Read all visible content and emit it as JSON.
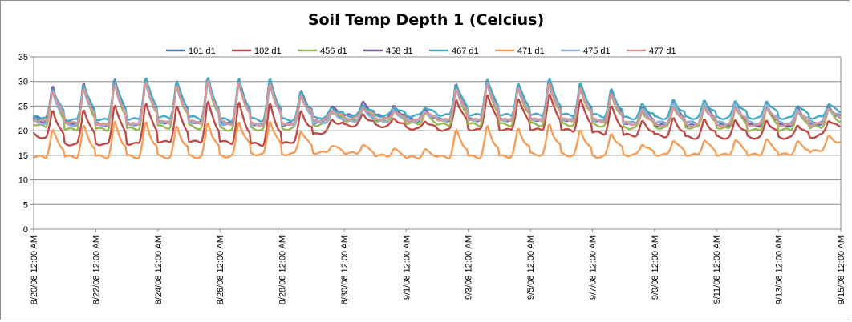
{
  "chart_data": {
    "type": "line",
    "title": "Soil Temp Depth 1 (Celcius)",
    "xlabel": "",
    "ylabel": "",
    "ylim": [
      0,
      35
    ],
    "yticks": [
      0,
      5,
      10,
      15,
      20,
      25,
      30,
      35
    ],
    "xlim": [
      0,
      26
    ],
    "xtick_labels": [
      "8/20/08 12:00 AM",
      "8/22/08 12:00 AM",
      "8/24/08 12:00 AM",
      "8/26/08 12:00 AM",
      "8/28/08 12:00 AM",
      "8/30/08 12:00 AM",
      "9/1/08 12:00 AM",
      "9/3/08 12:00 AM",
      "9/5/08 12:00 AM",
      "9/7/08 12:00 AM",
      "9/9/08 12:00 AM",
      "9/11/08 12:00 AM",
      "9/13/08 12:00 AM",
      "9/15/08 12:00 AM"
    ],
    "grid": "horizontal",
    "legend_position": "top",
    "daily_amplitude": [
      7,
      8,
      9,
      9,
      8,
      9,
      9,
      9,
      6,
      2,
      2.5,
      2,
      2,
      7,
      8,
      7,
      8,
      7,
      6,
      3,
      4,
      4,
      4,
      4,
      3,
      3,
      8
    ],
    "series": [
      {
        "name": "101 d1",
        "color": "#4a7ebb",
        "base": [
          22.5,
          21.5,
          21,
          21,
          21.5,
          21.5,
          21.5,
          21,
          21,
          21.5,
          22,
          22,
          22,
          22,
          22,
          22,
          22,
          22,
          22,
          21.5,
          21,
          21,
          21,
          21,
          21,
          21,
          22
        ]
      },
      {
        "name": "102 d1",
        "color": "#be4b48",
        "base": [
          19,
          17,
          17,
          17,
          17.5,
          17.5,
          17.5,
          17,
          17,
          19,
          21,
          21,
          20.5,
          20,
          20,
          20,
          20,
          20,
          19.5,
          19,
          19,
          18.5,
          18.5,
          18.5,
          18.5,
          18.5,
          20
        ]
      },
      {
        "name": "456 d1",
        "color": "#98b954",
        "base": [
          21,
          20,
          20,
          20,
          20.5,
          20.5,
          20,
          20,
          20,
          21,
          22,
          22,
          21.5,
          21,
          21,
          21,
          21,
          21,
          21,
          20.5,
          20.5,
          20.5,
          20.5,
          20,
          20,
          20.5,
          21
        ]
      },
      {
        "name": "458 d1",
        "color": "#7d5fa0",
        "base": [
          22,
          21,
          21,
          21,
          21.5,
          21.5,
          21,
          21,
          21,
          22,
          23,
          23,
          22.5,
          22,
          22,
          22,
          22,
          22,
          22,
          21.5,
          21.5,
          21.5,
          21.5,
          21,
          21,
          21.5,
          22
        ]
      },
      {
        "name": "467 d1",
        "color": "#46aac5",
        "base": [
          22.5,
          22,
          22,
          22,
          22.5,
          22.5,
          22,
          22,
          22,
          22.5,
          23,
          23,
          23,
          23,
          23,
          23,
          23,
          23,
          23,
          22.5,
          22.5,
          22.5,
          22.5,
          22.5,
          22.5,
          22.5,
          23
        ]
      },
      {
        "name": "471 d1",
        "color": "#f59d56",
        "base": [
          14.5,
          14.5,
          14.5,
          14.5,
          14.5,
          14.5,
          14.5,
          15,
          15,
          15.5,
          15.5,
          15,
          14.5,
          14.5,
          14.5,
          14.5,
          15,
          15,
          14.5,
          15,
          15,
          15,
          15,
          15,
          15,
          15.5,
          17
        ]
      },
      {
        "name": "475 d1",
        "color": "#95b3d7",
        "base": [
          21.5,
          21,
          21,
          21,
          21.5,
          21.5,
          21,
          21,
          21,
          21.5,
          22,
          22,
          22,
          22,
          22,
          22,
          22,
          22,
          22,
          21.5,
          21.5,
          21.5,
          21.5,
          21.5,
          21.5,
          21.5,
          22
        ]
      },
      {
        "name": "477 d1",
        "color": "#d99694",
        "base": [
          22,
          21.5,
          21,
          21,
          21.5,
          21.5,
          21.5,
          21,
          21,
          22,
          22.5,
          22.5,
          22,
          22,
          22,
          22,
          22,
          22,
          22,
          21.5,
          21,
          21,
          21,
          21,
          21,
          21,
          22
        ]
      }
    ]
  }
}
